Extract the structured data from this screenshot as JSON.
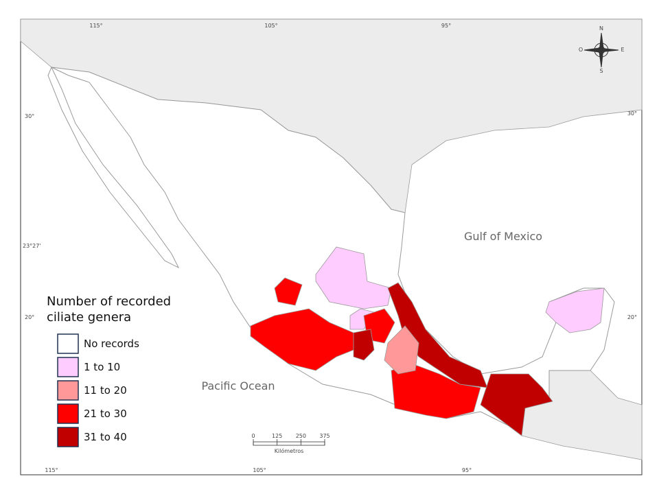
{
  "graticule": {
    "top": [
      "115°",
      "105°",
      "95°"
    ],
    "bottom": [
      "115°",
      "105°",
      "95°"
    ],
    "left": [
      "30°",
      "23°27'",
      "20°"
    ],
    "right": [
      "30°",
      "20°"
    ]
  },
  "compass": {
    "north": "N",
    "east": "E",
    "south": "S",
    "west": "O"
  },
  "water_labels": [
    "Gulf of Mexico",
    "Pacific Ocean"
  ],
  "legend": {
    "title": "Number of recorded ciliate genera",
    "items": [
      {
        "label": "No records",
        "color": "#ffffff"
      },
      {
        "label": "1 to 10",
        "color": "#ffccff"
      },
      {
        "label": "11 to 20",
        "color": "#ff9999"
      },
      {
        "label": "21 to 30",
        "color": "#ff0000"
      },
      {
        "label": "31 to 40",
        "color": "#c00000"
      }
    ]
  },
  "scale_bar": {
    "ticks": [
      0,
      125,
      250,
      375
    ],
    "unit": "Kilómetros"
  }
}
